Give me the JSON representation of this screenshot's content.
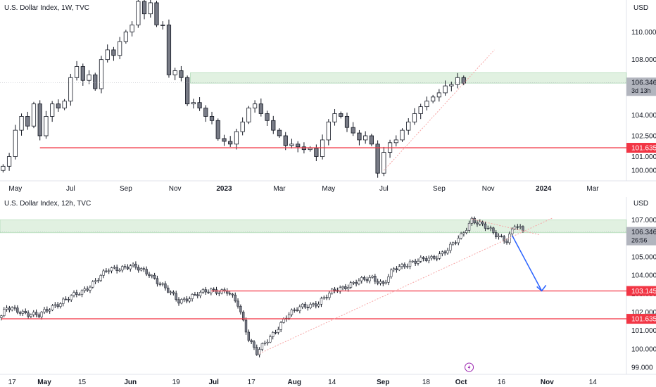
{
  "colors": {
    "up": "#ffffff",
    "down": "#787b86",
    "wick": "#131722",
    "support": "#f23645",
    "zone": "#c8e6c9",
    "trend": "#f7a6a6",
    "arrow": "#2962ff",
    "price_tag": "#b2b5be",
    "grid": "#eeeeee"
  },
  "icons": [
    "lightning-icon"
  ],
  "chart_data": [
    {
      "type": "candlestick",
      "title": "U.S. Dollar Index, 1W, TVC",
      "currency": "USD",
      "ylim": [
        99.3,
        112.3
      ],
      "y_ticks": [
        "110.000",
        "108.000",
        "106.000",
        "104.000",
        "102.500",
        "101.000",
        "100.000"
      ],
      "y_tick_values": [
        110.0,
        108.0,
        106.0,
        104.0,
        102.5,
        101.0,
        100.0
      ],
      "x_ticks": [
        "May",
        "Jul",
        "Sep",
        "Nov",
        "2023",
        "Mar",
        "May",
        "Jul",
        "Sep",
        "Nov",
        "2024",
        "Mar"
      ],
      "x_tick_index": [
        2,
        11,
        20,
        28,
        36,
        45,
        53,
        62,
        71,
        79,
        88,
        96
      ],
      "x_tick_bold": [
        false,
        false,
        false,
        false,
        true,
        false,
        false,
        false,
        false,
        false,
        true,
        false
      ],
      "n_slots": 102,
      "last_price": "106.346",
      "countdown": "3d 13h",
      "last_price_value": 106.346,
      "support_label": "101.635",
      "support_value": 101.635,
      "support_from_index": 6,
      "zone": [
        106.3,
        107.05
      ],
      "zone_from_index": 31,
      "trendline": {
        "from": [
          62,
          100.0
        ],
        "to": [
          80,
          108.7
        ]
      },
      "close": [
        100.3,
        101.0,
        102.9,
        103.9,
        103.2,
        104.8,
        102.5,
        103.9,
        104.8,
        104.5,
        105.0,
        106.7,
        107.5,
        106.5,
        106.9,
        105.9,
        108.0,
        108.7,
        108.3,
        109.3,
        110.0,
        110.5,
        112.2,
        111.3,
        112.1,
        110.5,
        110.5,
        106.9,
        107.2,
        106.7,
        104.8,
        104.9,
        104.5,
        103.9,
        103.6,
        102.3,
        102.1,
        101.9,
        102.8,
        103.5,
        104.5,
        104.8,
        104.1,
        103.6,
        102.9,
        102.5,
        101.8,
        101.9,
        101.7,
        101.5,
        101.6,
        101.0,
        102.2,
        103.5,
        104.1,
        103.9,
        103.1,
        102.7,
        102.2,
        102.5,
        101.9,
        99.8,
        101.3,
        102.0,
        102.2,
        102.9,
        103.5,
        104.1,
        104.6,
        105.0,
        105.3,
        105.6,
        106.1,
        106.2,
        106.7,
        106.3
      ],
      "open": [
        100.0,
        100.3,
        101.0,
        102.9,
        103.9,
        103.2,
        104.8,
        102.5,
        103.9,
        104.8,
        104.5,
        105.0,
        106.7,
        107.5,
        106.5,
        106.9,
        105.9,
        108.0,
        108.7,
        108.3,
        109.3,
        110.0,
        110.5,
        112.2,
        111.3,
        112.1,
        110.5,
        110.5,
        106.9,
        107.2,
        106.7,
        104.8,
        104.9,
        104.5,
        103.9,
        103.6,
        102.3,
        102.1,
        101.9,
        102.8,
        103.5,
        104.5,
        104.8,
        104.1,
        103.6,
        102.9,
        102.5,
        101.8,
        101.9,
        101.7,
        101.5,
        101.6,
        101.0,
        102.2,
        103.5,
        104.1,
        103.9,
        103.1,
        102.7,
        102.2,
        102.5,
        101.9,
        99.8,
        101.3,
        102.0,
        102.2,
        102.9,
        103.5,
        104.1,
        104.6,
        105.0,
        105.3,
        105.6,
        106.1,
        106.2,
        106.7
      ]
    },
    {
      "type": "candlestick",
      "title": "U.S. Dollar Index, 12h, TVC",
      "currency": "USD",
      "ylim": [
        98.7,
        107.4
      ],
      "y_ticks": [
        "107.000",
        "106.000",
        "105.000",
        "104.000",
        "103.000",
        "102.000",
        "101.000",
        "100.000",
        "99.000"
      ],
      "y_tick_values": [
        107.0,
        106.0,
        105.0,
        104.0,
        103.0,
        102.0,
        101.0,
        100.0,
        99.0
      ],
      "x_ticks": [
        "17",
        "May",
        "15",
        "Jun",
        "19",
        "Jul",
        "17",
        "Aug",
        "14",
        "Sep",
        "18",
        "Oct",
        "16",
        "Nov",
        "14"
      ],
      "x_tick_index": [
        4,
        16,
        30,
        48,
        65,
        79,
        93,
        109,
        123,
        142,
        158,
        171,
        186,
        203,
        220
      ],
      "x_tick_bold": [
        false,
        true,
        false,
        true,
        false,
        true,
        false,
        true,
        false,
        true,
        false,
        true,
        false,
        true,
        false
      ],
      "n_slots": 233,
      "last_price": "106.346",
      "countdown": "26:56",
      "last_price_value": 106.346,
      "levels": [
        {
          "label": "103.145",
          "value": 103.145,
          "from_index": 78
        },
        {
          "label": "101.635",
          "value": 101.635,
          "from_index": 0
        }
      ],
      "zone": [
        106.3,
        107.0
      ],
      "zone_from_index": 0,
      "trendline": {
        "from": [
          96,
          99.75
        ],
        "to": [
          205,
          107.1
        ]
      },
      "resistance_line": {
        "from": [
          175,
          107.05
        ],
        "to": [
          200,
          106.2
        ]
      },
      "arrow": {
        "from": [
          190,
          106.15
        ],
        "to": [
          201,
          103.15
        ]
      },
      "anchors": [
        [
          0,
          101.8
        ],
        [
          2,
          102.2
        ],
        [
          8,
          102.0
        ],
        [
          14,
          101.8
        ],
        [
          20,
          102.4
        ],
        [
          30,
          103.1
        ],
        [
          40,
          104.3
        ],
        [
          48,
          104.5
        ],
        [
          55,
          104.1
        ],
        [
          60,
          103.4
        ],
        [
          66,
          102.6
        ],
        [
          72,
          102.9
        ],
        [
          78,
          103.2
        ],
        [
          84,
          103.1
        ],
        [
          88,
          102.4
        ],
        [
          92,
          100.6
        ],
        [
          95,
          99.8
        ],
        [
          100,
          100.6
        ],
        [
          106,
          101.8
        ],
        [
          112,
          102.3
        ],
        [
          118,
          102.5
        ],
        [
          124,
          103.2
        ],
        [
          130,
          103.5
        ],
        [
          138,
          103.9
        ],
        [
          142,
          103.5
        ],
        [
          146,
          104.3
        ],
        [
          152,
          104.7
        ],
        [
          160,
          104.9
        ],
        [
          166,
          105.4
        ],
        [
          171,
          106.1
        ],
        [
          175,
          107.05
        ],
        [
          179,
          106.7
        ],
        [
          184,
          106.2
        ],
        [
          188,
          105.9
        ],
        [
          191,
          106.7
        ],
        [
          194,
          106.35
        ]
      ]
    }
  ]
}
